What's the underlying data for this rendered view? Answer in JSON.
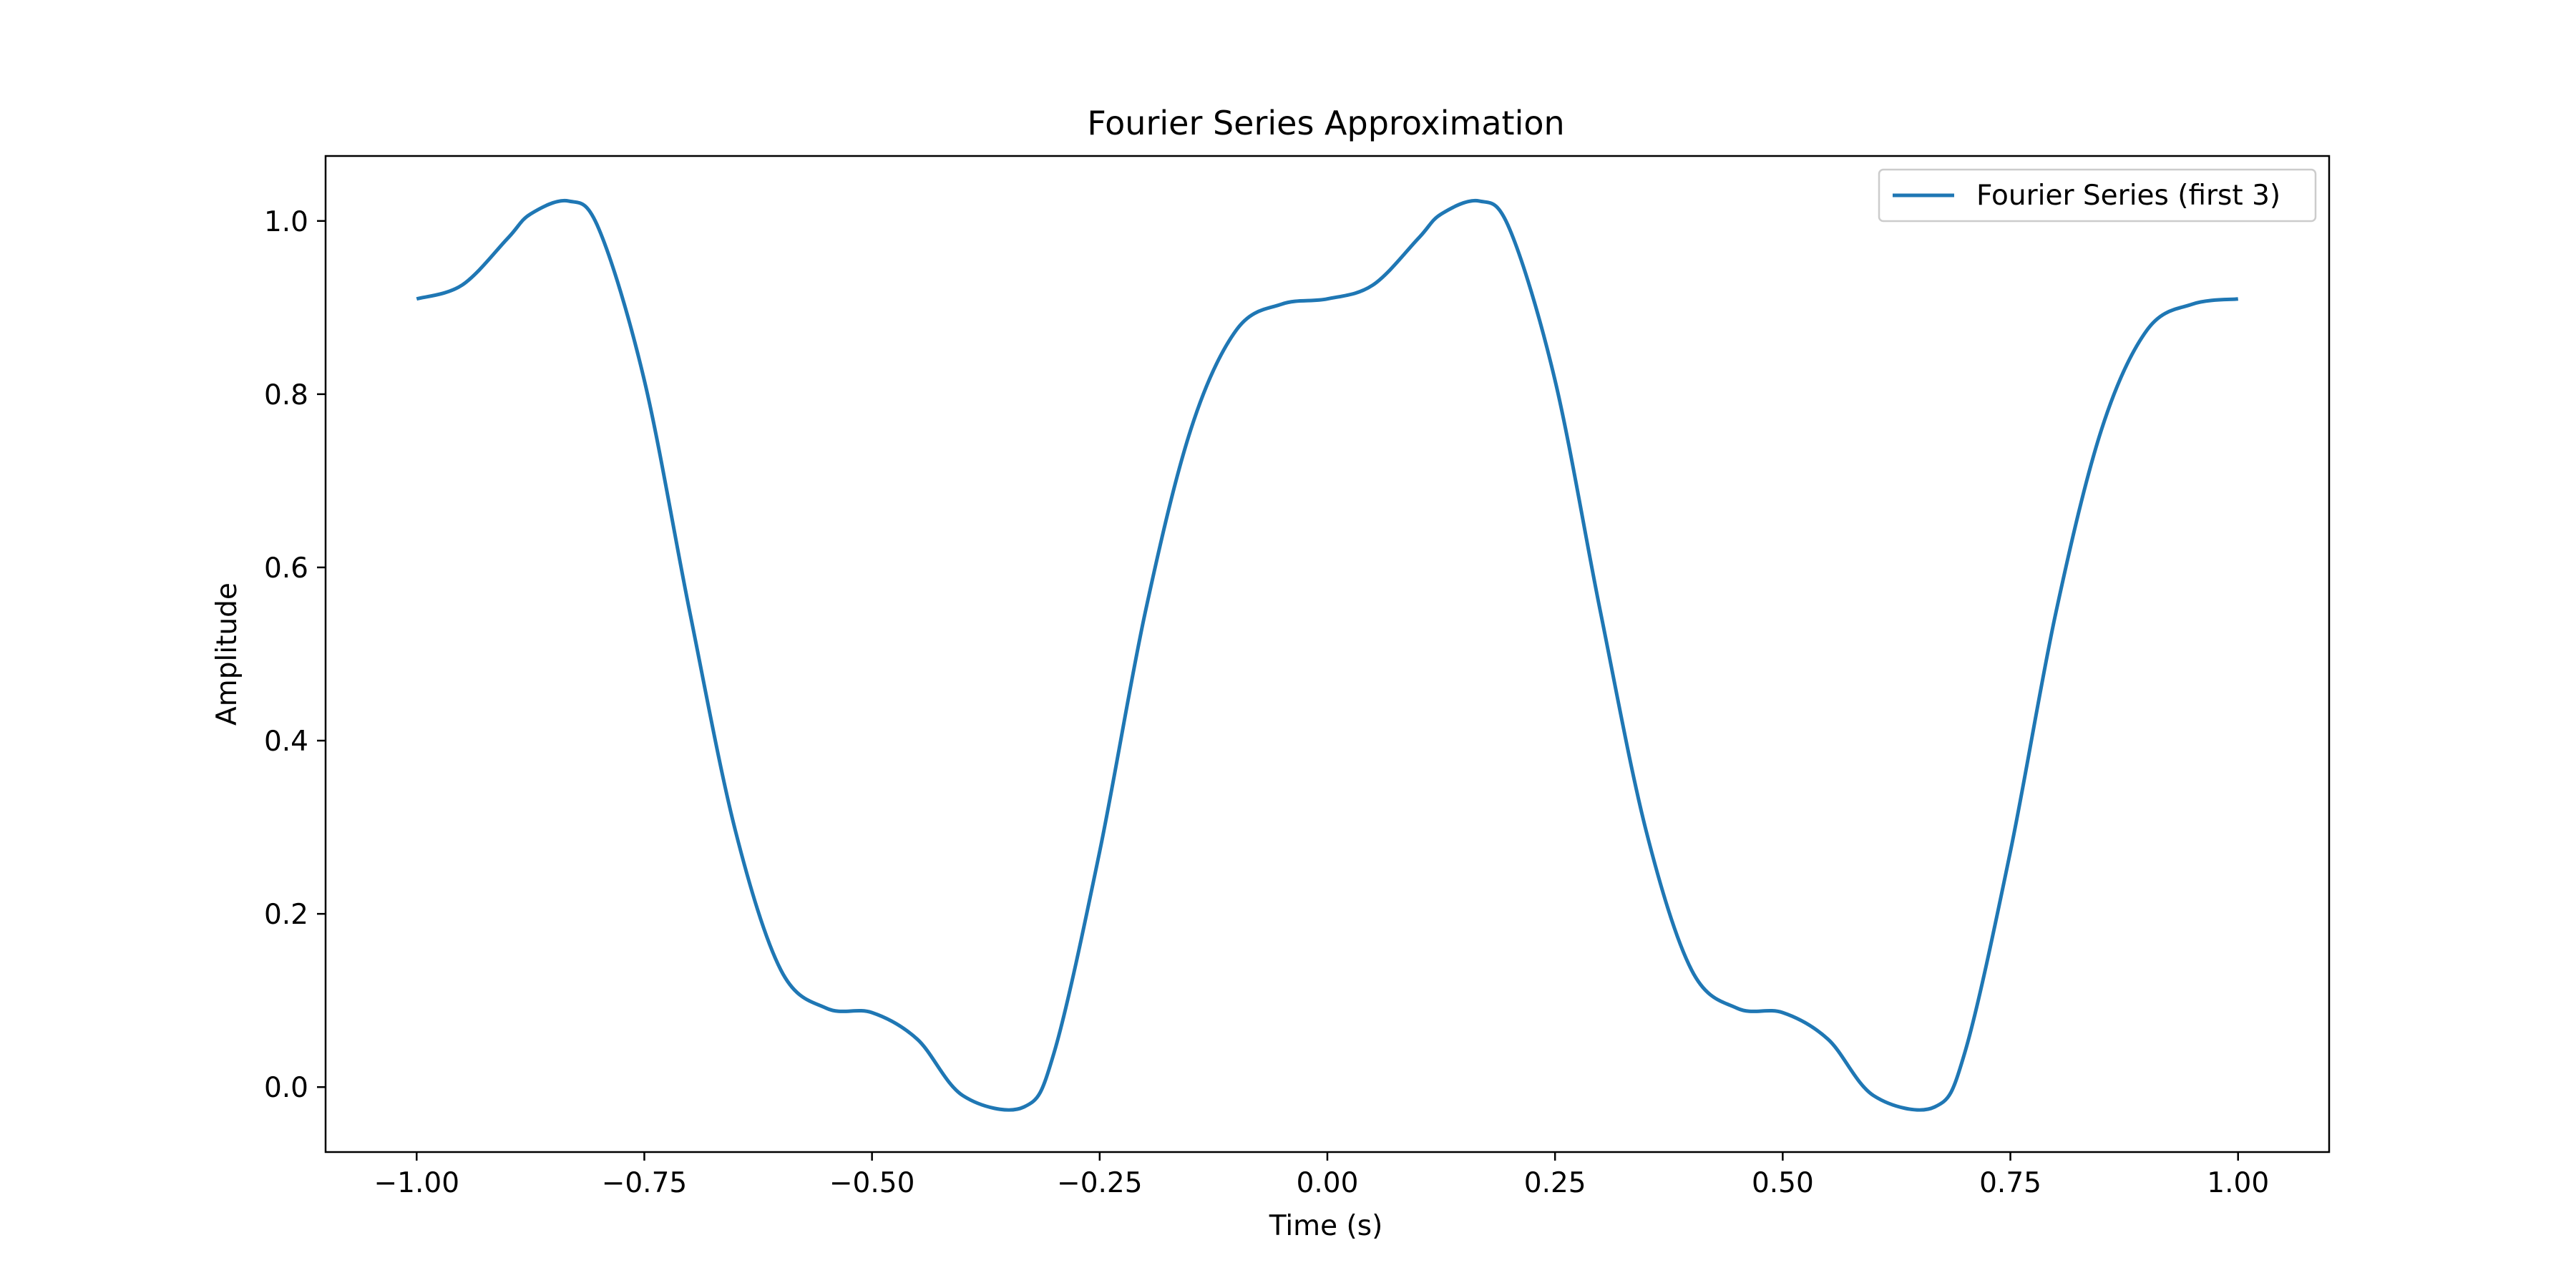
{
  "chart_data": {
    "type": "line",
    "title": "Fourier Series Approximation",
    "xlabel": "Time (s)",
    "ylabel": "Amplitude",
    "xlim": [
      -1.1,
      1.1
    ],
    "ylim": [
      -0.075,
      1.075
    ],
    "xticks": [
      -1.0,
      -0.75,
      -0.5,
      -0.25,
      0.0,
      0.25,
      0.5,
      0.75,
      1.0
    ],
    "xtick_labels": [
      "−1.00",
      "−0.75",
      "−0.50",
      "−0.25",
      "0.00",
      "0.25",
      "0.50",
      "0.75",
      "1.00"
    ],
    "yticks": [
      0.0,
      0.2,
      0.4,
      0.6,
      0.8,
      1.0
    ],
    "ytick_labels": [
      "0.0",
      "0.2",
      "0.4",
      "0.6",
      "0.8",
      "1.0"
    ],
    "grid": false,
    "legend": {
      "placement": "top-right"
    },
    "colors": {
      "series": "#1f77b4"
    },
    "series": [
      {
        "name": "Fourier Series (first 3)",
        "x": [
          -1.0,
          -0.95,
          -0.9,
          -0.875,
          -0.8333,
          -0.8,
          -0.75,
          -0.7,
          -0.65,
          -0.6,
          -0.55,
          -0.5,
          -0.45,
          -0.4,
          -0.3333,
          -0.3,
          -0.25,
          -0.2,
          -0.15,
          -0.1,
          -0.05,
          0.0,
          0.05,
          0.1,
          0.125,
          0.1667,
          0.2,
          0.25,
          0.3,
          0.35,
          0.4,
          0.45,
          0.5,
          0.55,
          0.6,
          0.6667,
          0.7,
          0.75,
          0.8,
          0.85,
          0.9,
          0.95,
          1.0
        ],
        "y": [
          0.91,
          0.926,
          0.98,
          1.008,
          1.023,
          0.991,
          0.816,
          0.548,
          0.296,
          0.135,
          0.091,
          0.086,
          0.055,
          -0.01,
          -0.023,
          0.04,
          0.272,
          0.548,
          0.759,
          0.874,
          0.904,
          0.91,
          0.926,
          0.98,
          1.008,
          1.023,
          0.991,
          0.816,
          0.548,
          0.296,
          0.135,
          0.091,
          0.086,
          0.055,
          -0.01,
          -0.023,
          0.04,
          0.272,
          0.548,
          0.759,
          0.874,
          0.904,
          0.91
        ]
      }
    ]
  }
}
